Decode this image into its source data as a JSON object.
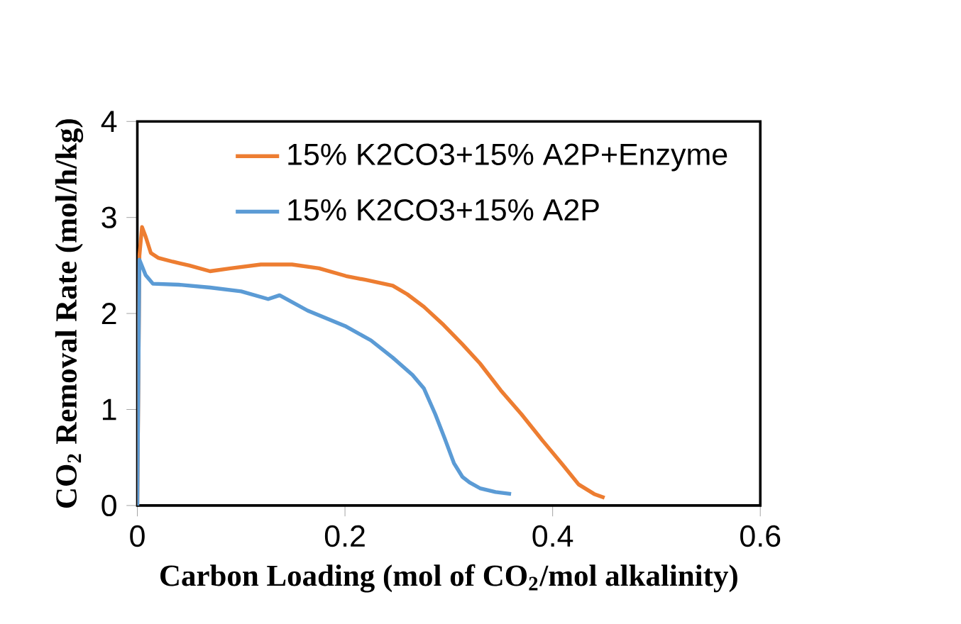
{
  "chart_data": {
    "type": "line",
    "xlabel": "Carbon Loading (mol of CO$_{2}$/mol alkalinity)",
    "ylabel": "CO$_{2}$ Removal Rate (mol/h/kg)",
    "xlim": [
      0,
      0.6
    ],
    "ylim": [
      0,
      4
    ],
    "xticks": [
      0,
      0.2,
      0.4,
      0.6
    ],
    "yticks": [
      0,
      1,
      2,
      3,
      4
    ],
    "grid": false,
    "legend": "top right",
    "marker": "none",
    "line_style": "solid",
    "series": [
      {
        "name": "15% K2CO3+15% A2P+Enzyme",
        "color": "#ed7d31",
        "x": [
          0,
          0.002,
          0.0045,
          0.008,
          0.013,
          0.02,
          0.034,
          0.05,
          0.07,
          0.09,
          0.119,
          0.149,
          0.175,
          0.201,
          0.22,
          0.246,
          0.26,
          0.276,
          0.295,
          0.313,
          0.33,
          0.35,
          0.37,
          0.39,
          0.41,
          0.425,
          0.44,
          0.45
        ],
        "values": [
          0,
          2.6,
          2.9,
          2.8,
          2.63,
          2.58,
          2.54,
          2.5,
          2.44,
          2.47,
          2.51,
          2.51,
          2.47,
          2.39,
          2.35,
          2.29,
          2.2,
          2.07,
          1.88,
          1.68,
          1.48,
          1.2,
          0.95,
          0.68,
          0.42,
          0.22,
          0.12,
          0.08
        ]
      },
      {
        "name": "15% K2CO3+15% A2P",
        "color": "#5b9bd5",
        "x": [
          0,
          0.002,
          0.008,
          0.015,
          0.04,
          0.07,
          0.1,
          0.126,
          0.137,
          0.164,
          0.2,
          0.225,
          0.246,
          0.265,
          0.276,
          0.287,
          0.296,
          0.305,
          0.313,
          0.32,
          0.33,
          0.345,
          0.36
        ],
        "values": [
          0,
          2.56,
          2.4,
          2.31,
          2.3,
          2.27,
          2.23,
          2.15,
          2.19,
          2.03,
          1.87,
          1.72,
          1.54,
          1.36,
          1.22,
          0.95,
          0.7,
          0.44,
          0.3,
          0.24,
          0.18,
          0.14,
          0.12
        ]
      }
    ]
  }
}
